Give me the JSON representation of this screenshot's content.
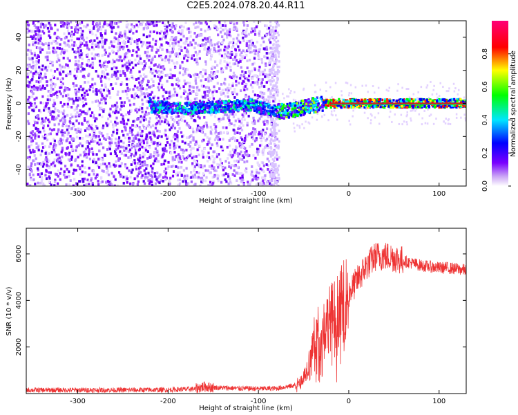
{
  "title": "C2E5.2024.078.20.44.R11",
  "colors": {
    "snr_line": "#ee3333",
    "spectrum_ridge": "#cc2222"
  },
  "chart_data": [
    {
      "type": "heatmap",
      "xlabel": "Height of straight line (km)",
      "ylabel": "Frequency (Hz)",
      "xlim": [
        -357,
        130
      ],
      "ylim": [
        -50,
        50
      ],
      "xticks": [
        -300,
        -200,
        -100,
        0,
        100
      ],
      "yticks": [
        -40,
        -20,
        0,
        20,
        40
      ],
      "grid": false,
      "colorbar": {
        "label": "Normalized spectral amplitude",
        "range": [
          0,
          1
        ],
        "ticks": [
          "0.0",
          "0.2",
          "0.4",
          "0.6",
          "0.8"
        ],
        "colormap": "rainbow (purple→blue→cyan→green→yellow→red→magenta)"
      },
      "features": {
        "noise_dense_x": [
          -357,
          -90
        ],
        "noise_sparse_x": [
          -90,
          -78
        ],
        "ridge_center_freq": [
          [
            -220,
            -2
          ],
          [
            -180,
            -3
          ],
          [
            -140,
            -2
          ],
          [
            -110,
            -1
          ],
          [
            -80,
            -5
          ],
          [
            -60,
            -4
          ],
          [
            -40,
            -1
          ],
          [
            -20,
            0
          ],
          [
            0,
            0
          ],
          [
            50,
            0
          ],
          [
            130,
            0
          ]
        ]
      }
    },
    {
      "type": "line",
      "xlabel": "Height of straight line (km)",
      "ylabel": "SNR (10 * v/v)",
      "xlim": [
        -357,
        130
      ],
      "ylim": [
        0,
        7100
      ],
      "xticks": [
        -300,
        -200,
        -100,
        0,
        100
      ],
      "yticks": [
        2000,
        4000,
        6000
      ],
      "grid": false,
      "series": [
        {
          "x": [
            -357,
            -300,
            -250,
            -200,
            -170,
            -160,
            -150,
            -120,
            -100,
            -80,
            -60,
            -50,
            -45,
            -40,
            -35,
            -30,
            -25,
            -20,
            -10,
            0,
            10,
            20,
            30,
            40,
            50,
            60,
            70,
            80,
            90,
            100,
            110,
            120,
            130
          ],
          "values": [
            150,
            150,
            150,
            160,
            200,
            300,
            260,
            220,
            210,
            220,
            350,
            700,
            1200,
            2100,
            2600,
            2800,
            3000,
            3300,
            3700,
            4300,
            4900,
            5500,
            5900,
            5900,
            5850,
            5700,
            5600,
            5500,
            5450,
            5400,
            5400,
            5350,
            5300
          ]
        }
      ]
    }
  ]
}
